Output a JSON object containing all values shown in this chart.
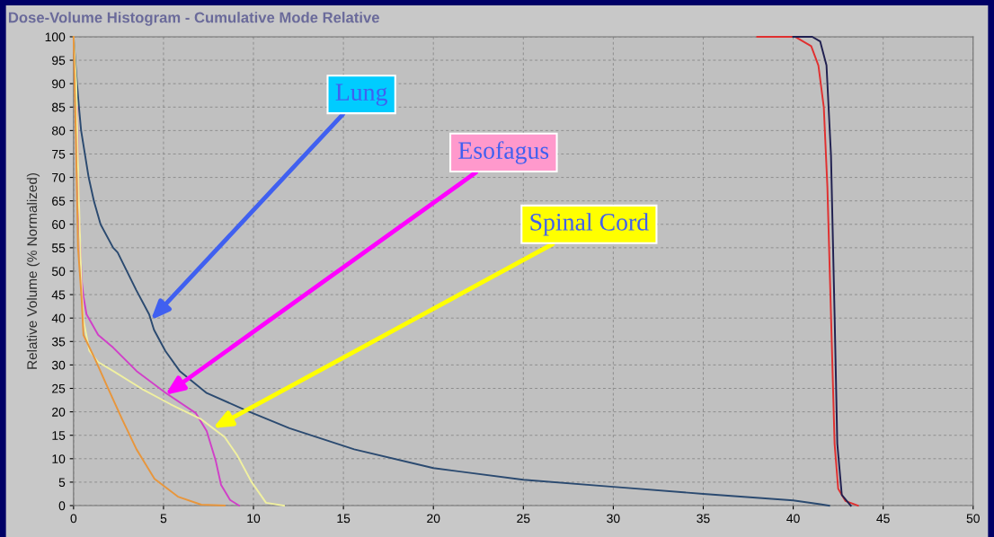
{
  "chart_data": {
    "type": "line",
    "title": "Dose-Volume Histogram - Cumulative Mode Relative",
    "ylabel": "Relative Volume (% Normalized)",
    "xlim": [
      0,
      50
    ],
    "ylim": [
      0,
      100
    ],
    "xticks": [
      0,
      5,
      10,
      15,
      20,
      25,
      30,
      35,
      40,
      45,
      50
    ],
    "yticks": [
      0,
      5,
      10,
      15,
      20,
      25,
      30,
      35,
      40,
      45,
      50,
      55,
      60,
      65,
      70,
      75,
      80,
      85,
      90,
      95,
      100
    ],
    "grid": true,
    "series": [
      {
        "color": "#2b4a70",
        "x": [
          0,
          0.15,
          0.3,
          0.42,
          0.84,
          1.13,
          1.5,
          2.2,
          2.45,
          3.48,
          4.2,
          4.3,
          4.47,
          5.1,
          5.9,
          7.4,
          9.6,
          12,
          15.6,
          20,
          25,
          30,
          35,
          40,
          41.5,
          42
        ],
        "values": [
          100,
          92,
          85,
          80,
          70,
          65,
          60,
          55,
          54,
          46,
          40.8,
          39.6,
          37.5,
          33,
          28.7,
          24,
          20.3,
          16.5,
          12,
          8,
          5.5,
          4,
          2.5,
          1.1,
          0.3,
          0
        ]
      },
      {
        "color": "#d040c8",
        "x": [
          0.2,
          0.3,
          0.45,
          0.55,
          0.72,
          1.37,
          2.2,
          3.5,
          5.1,
          6.8,
          7.4,
          7.9,
          8.2,
          8.7,
          9.2
        ],
        "values": [
          85,
          62,
          48,
          44.6,
          40.8,
          36.4,
          33.7,
          28.7,
          24.1,
          19.7,
          15.9,
          9.6,
          4.4,
          1.2,
          0
        ]
      },
      {
        "color": "#f0f0a0",
        "x": [
          0,
          0.15,
          0.3,
          0.45,
          0.55,
          0.88,
          1.37,
          2.2,
          3.8,
          5.4,
          7.1,
          7.75,
          8.4,
          9.1,
          9.9,
          10.7,
          11.7
        ],
        "values": [
          100,
          90,
          65,
          46,
          39.5,
          33,
          30.6,
          28.7,
          24.9,
          21.6,
          18.4,
          16.5,
          14.6,
          10.7,
          5,
          0.6,
          0
        ]
      },
      {
        "color": "#e8963c",
        "x": [
          0,
          0.12,
          0.25,
          0.45,
          0.55,
          1.2,
          1.86,
          2.7,
          3.5,
          4.5,
          5.8,
          7.1,
          8.4
        ],
        "values": [
          100,
          80,
          55,
          44,
          36.4,
          31.2,
          25.5,
          18.4,
          12,
          5.7,
          1.9,
          0.2,
          0
        ]
      },
      {
        "color": "#e03030",
        "x": [
          38,
          40.1,
          41,
          41.4,
          41.7,
          41.9,
          42.1,
          42.3,
          42.5,
          42.9,
          43.6
        ],
        "values": [
          100,
          100,
          98,
          93.9,
          85,
          67.9,
          40.6,
          13.2,
          3.6,
          1,
          0
        ]
      },
      {
        "color": "#202050",
        "x": [
          40,
          41.06,
          41.5,
          41.85,
          42.1,
          42.3,
          42.45,
          42.7,
          43.2
        ],
        "values": [
          100,
          100,
          99,
          93.9,
          74.7,
          40.6,
          13.2,
          2.3,
          0
        ]
      }
    ],
    "annotations": [
      {
        "text": "Lung",
        "x": 4.3,
        "y": 39.6
      },
      {
        "text": "Esofagus",
        "x": 5.1,
        "y": 23.6
      },
      {
        "text": "Spinal Cord",
        "x": 7.75,
        "y": 16.5
      }
    ]
  }
}
